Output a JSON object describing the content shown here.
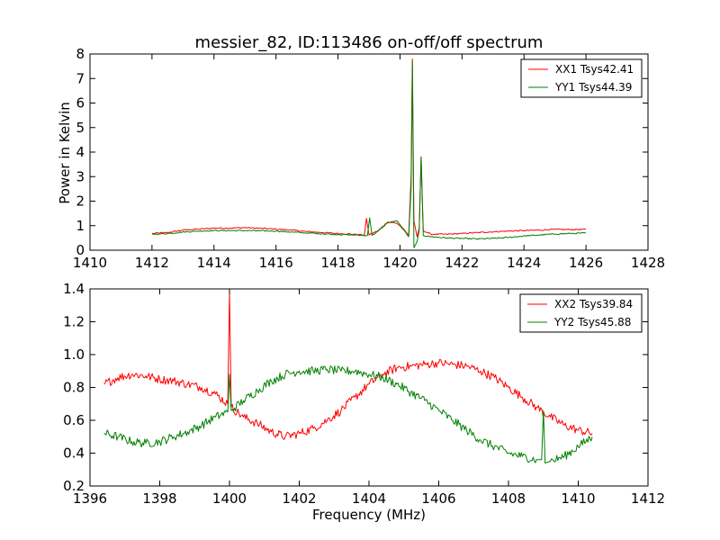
{
  "chart_data": [
    {
      "type": "line",
      "title": "messier_82, ID:113486 on-off/off spectrum",
      "xlabel": "",
      "ylabel": "Power in Kelvin",
      "xlim": [
        1410,
        1428
      ],
      "ylim": [
        0,
        8
      ],
      "xticks": [
        "1410",
        "1412",
        "1414",
        "1416",
        "1418",
        "1420",
        "1422",
        "1424",
        "1426",
        "1428"
      ],
      "yticks": [
        "0",
        "1",
        "2",
        "3",
        "4",
        "5",
        "6",
        "7",
        "8"
      ],
      "grid": false,
      "legend_position": "top-right",
      "series": [
        {
          "name": "XX1 Tsys42.41",
          "color": "#ff0000",
          "x": [
            1412.0,
            1412.5,
            1413.0,
            1413.5,
            1414.0,
            1414.5,
            1415.0,
            1415.5,
            1416.0,
            1416.5,
            1417.0,
            1417.5,
            1418.0,
            1418.5,
            1418.85,
            1418.92,
            1419.0,
            1419.3,
            1419.6,
            1419.9,
            1420.1,
            1420.28,
            1420.36,
            1420.4,
            1420.45,
            1420.55,
            1420.62,
            1420.68,
            1420.75,
            1421.0,
            1421.5,
            1422.0,
            1422.5,
            1423.0,
            1423.5,
            1424.0,
            1424.5,
            1425.0,
            1425.5,
            1426.0
          ],
          "y": [
            0.68,
            0.72,
            0.82,
            0.86,
            0.9,
            0.9,
            0.92,
            0.89,
            0.86,
            0.82,
            0.76,
            0.72,
            0.68,
            0.65,
            0.62,
            1.3,
            0.62,
            0.8,
            1.15,
            1.1,
            0.88,
            0.6,
            3.0,
            7.8,
            1.2,
            0.55,
            0.9,
            3.8,
            0.8,
            0.65,
            0.65,
            0.68,
            0.72,
            0.75,
            0.78,
            0.8,
            0.82,
            0.85,
            0.84,
            0.85
          ]
        },
        {
          "name": "YY1 Tsys44.39",
          "color": "#008000",
          "x": [
            1412.0,
            1412.5,
            1413.0,
            1413.5,
            1414.0,
            1414.5,
            1415.0,
            1415.5,
            1416.0,
            1416.5,
            1417.0,
            1417.5,
            1418.0,
            1418.5,
            1418.95,
            1419.02,
            1419.1,
            1419.3,
            1419.6,
            1419.9,
            1420.1,
            1420.28,
            1420.36,
            1420.4,
            1420.45,
            1420.55,
            1420.62,
            1420.68,
            1420.75,
            1421.0,
            1421.5,
            1422.0,
            1422.5,
            1423.0,
            1423.5,
            1424.0,
            1424.5,
            1425.0,
            1425.5,
            1426.0
          ],
          "y": [
            0.65,
            0.68,
            0.74,
            0.78,
            0.8,
            0.8,
            0.8,
            0.79,
            0.78,
            0.74,
            0.7,
            0.67,
            0.64,
            0.62,
            0.6,
            1.32,
            0.6,
            0.78,
            1.12,
            1.2,
            0.85,
            0.55,
            2.5,
            7.7,
            0.1,
            0.35,
            0.8,
            3.8,
            0.6,
            0.55,
            0.5,
            0.48,
            0.46,
            0.48,
            0.52,
            0.58,
            0.62,
            0.66,
            0.68,
            0.7
          ]
        }
      ]
    },
    {
      "type": "line",
      "title": "",
      "xlabel": "Frequency (MHz)",
      "ylabel": "",
      "xlim": [
        1396,
        1412
      ],
      "ylim": [
        0.2,
        1.4
      ],
      "xticks": [
        "1396",
        "1398",
        "1400",
        "1402",
        "1404",
        "1406",
        "1408",
        "1410",
        "1412"
      ],
      "yticks": [
        "0.2",
        "0.4",
        "0.6",
        "0.8",
        "1.0",
        "1.2",
        "1.4"
      ],
      "grid": false,
      "legend_position": "top-right",
      "series": [
        {
          "name": "XX2 Tsys39.84",
          "color": "#ff0000",
          "x": [
            1396.4,
            1396.8,
            1397.2,
            1397.6,
            1398.0,
            1398.4,
            1398.8,
            1399.2,
            1399.6,
            1399.95,
            1400.0,
            1400.05,
            1400.4,
            1400.8,
            1401.2,
            1401.6,
            1402.0,
            1402.4,
            1402.8,
            1403.2,
            1403.6,
            1404.0,
            1404.4,
            1404.8,
            1405.2,
            1405.6,
            1406.0,
            1406.4,
            1406.8,
            1407.2,
            1407.6,
            1408.0,
            1408.4,
            1408.8,
            1409.2,
            1409.6,
            1410.0,
            1410.4
          ],
          "y": [
            0.82,
            0.86,
            0.88,
            0.87,
            0.85,
            0.84,
            0.82,
            0.8,
            0.76,
            0.7,
            1.38,
            0.68,
            0.62,
            0.58,
            0.53,
            0.5,
            0.52,
            0.55,
            0.6,
            0.66,
            0.74,
            0.82,
            0.88,
            0.92,
            0.93,
            0.94,
            0.95,
            0.94,
            0.93,
            0.9,
            0.86,
            0.8,
            0.74,
            0.68,
            0.62,
            0.57,
            0.54,
            0.52
          ]
        },
        {
          "name": "YY2 Tsys45.88",
          "color": "#008000",
          "x": [
            1396.4,
            1396.8,
            1397.2,
            1397.6,
            1398.0,
            1398.4,
            1398.8,
            1399.2,
            1399.6,
            1399.95,
            1400.0,
            1400.05,
            1400.4,
            1400.8,
            1401.2,
            1401.6,
            1402.0,
            1402.4,
            1402.8,
            1403.2,
            1403.6,
            1404.0,
            1404.4,
            1404.8,
            1405.2,
            1405.6,
            1406.0,
            1406.4,
            1406.8,
            1407.2,
            1407.6,
            1408.0,
            1408.4,
            1408.8,
            1408.95,
            1409.0,
            1409.05,
            1409.2,
            1409.6,
            1410.0,
            1410.4
          ],
          "y": [
            0.52,
            0.5,
            0.47,
            0.46,
            0.47,
            0.5,
            0.53,
            0.57,
            0.62,
            0.65,
            0.88,
            0.66,
            0.72,
            0.78,
            0.84,
            0.88,
            0.9,
            0.9,
            0.91,
            0.9,
            0.9,
            0.88,
            0.86,
            0.82,
            0.77,
            0.72,
            0.66,
            0.6,
            0.54,
            0.48,
            0.44,
            0.4,
            0.38,
            0.36,
            0.36,
            0.66,
            0.34,
            0.35,
            0.38,
            0.44,
            0.5
          ]
        }
      ]
    }
  ]
}
